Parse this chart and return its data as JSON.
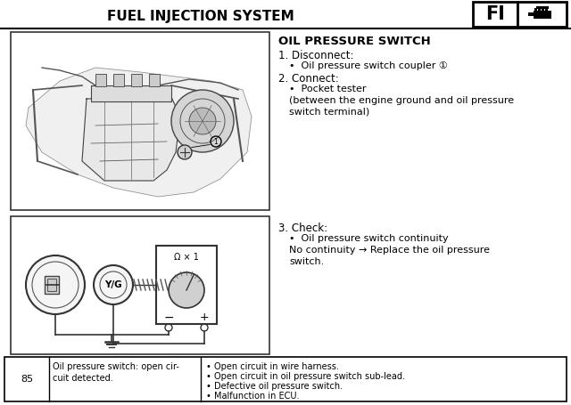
{
  "title": "FUEL INJECTION SYSTEM",
  "fi_label": "FI",
  "section_title": "OIL PRESSURE SWITCH",
  "line1": "1. Disconnect:",
  "line2": "•  Oil pressure switch coupler ①",
  "line3": "2. Connect:",
  "line4": "•  Pocket tester",
  "line5": "    (between the engine ground and oil pressure",
  "line6": "    switch terminal)",
  "line7": "3. Check:",
  "line8": "•  Oil pressure switch continuity",
  "line9": "    No continuity → Replace the oil pressure",
  "line10": "    switch.",
  "table_num": "85",
  "table_col1": "Oil pressure switch: open cir-\ncuit detected.",
  "table_col2_lines": [
    "• Open circuit in wire harness.",
    "• Open circuit in oil pressure switch sub-lead.",
    "• Defective oil pressure switch.",
    "• Malfunction in ECU."
  ],
  "bg_color": "#ffffff",
  "text_color": "#000000",
  "border_color": "#000000"
}
